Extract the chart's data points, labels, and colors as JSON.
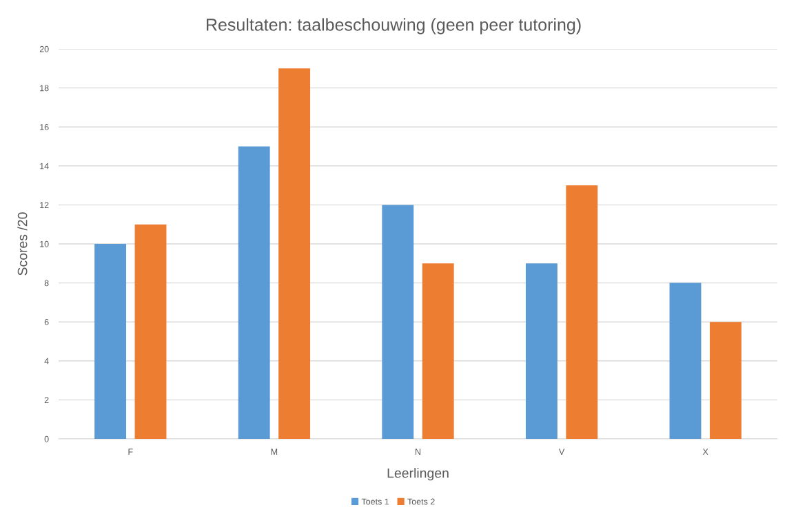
{
  "chart_data": {
    "type": "bar",
    "title": "Resultaten: taalbeschouwing (geen peer tutoring)",
    "xlabel": "Leerlingen",
    "ylabel": "Scores /20",
    "categories": [
      "F",
      "M",
      "N",
      "V",
      "X"
    ],
    "series": [
      {
        "name": "Toets 1",
        "color": "#5b9bd5",
        "values": [
          10,
          15,
          12,
          9,
          8
        ]
      },
      {
        "name": "Toets 2",
        "color": "#ed7d31",
        "values": [
          11,
          19,
          9,
          13,
          6
        ]
      }
    ],
    "ylim": [
      0,
      20
    ],
    "yticks": [
      0,
      2,
      4,
      6,
      8,
      10,
      12,
      14,
      16,
      18,
      20
    ],
    "grid": "y",
    "legend": "bottom"
  }
}
